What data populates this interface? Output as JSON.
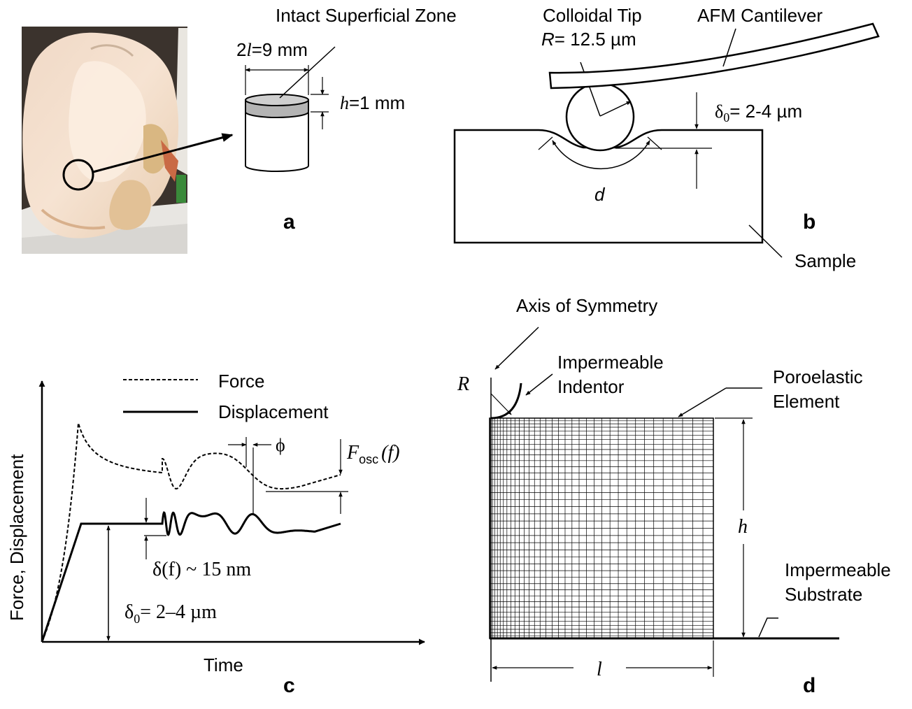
{
  "panel_a": {
    "letter": "a",
    "zone_label": "Intact Superficial Zone",
    "diameter_prefix": "2",
    "diameter_var": "l",
    "diameter_value": "=9 mm",
    "height_var": "h",
    "height_value": "=1 mm"
  },
  "panel_b": {
    "letter": "b",
    "tip_label": "Colloidal Tip",
    "radius_var": "R",
    "radius_value": "= 12.5 µm",
    "cantilever_label": "AFM Cantilever",
    "offset_symbol": "δ",
    "offset_sub": "0",
    "offset_value": "= 2-4 µm",
    "contact_var": "d",
    "sample_label": "Sample"
  },
  "panel_c": {
    "letter": "c",
    "legend_force": "Force",
    "legend_displacement": "Displacement",
    "y_axis_label": "Force, Displacement",
    "x_axis_label": "Time",
    "phase_symbol": "ϕ",
    "force_amp_var": "F",
    "force_amp_sub": "osc",
    "force_amp_arg": "(f)",
    "disp_amp_label": "δ(f) ~ 15  nm",
    "offset_label": "δ",
    "offset_sub": "0",
    "offset_value": "= 2–4 µm"
  },
  "panel_d": {
    "letter": "d",
    "axis_label": "Axis of Symmetry",
    "indentor_line1": "Impermeable",
    "indentor_line2": "Indentor",
    "element_line1": "Poroelastic",
    "element_line2": "Element",
    "radius_var": "R",
    "height_var": "h",
    "length_var": "l",
    "substrate_line1": "Impermeable",
    "substrate_line2": "Substrate"
  },
  "colors": {
    "ink": "#000000",
    "zone_gray": "#b4b4b4",
    "photo_background": "#3b332d"
  }
}
